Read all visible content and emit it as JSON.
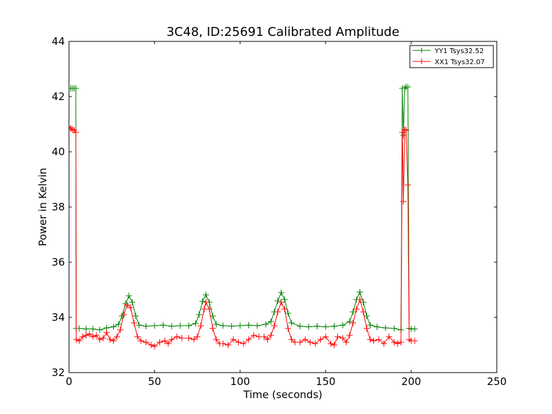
{
  "chart_data": {
    "type": "line",
    "title": "3C48, ID:25691 Calibrated Amplitude",
    "xlabel": "Time (seconds)",
    "ylabel": "Power in Kelvin",
    "xlim": [
      0,
      250
    ],
    "ylim": [
      32,
      44
    ],
    "xticks": [
      "0",
      "50",
      "100",
      "150",
      "200",
      "250"
    ],
    "yticks": [
      "32",
      "34",
      "36",
      "38",
      "40",
      "42",
      "44"
    ],
    "legend_position": "top-right",
    "grid": false,
    "marker": "+",
    "series": [
      {
        "name": "YY1 Tsys32.52",
        "color": "#008000",
        "points": [
          [
            0,
            42.3
          ],
          [
            1,
            42.3
          ],
          [
            2,
            42.3
          ],
          [
            3,
            42.3
          ],
          [
            4,
            42.3
          ],
          [
            4.2,
            33.6
          ],
          [
            6,
            33.6
          ],
          [
            10,
            33.58
          ],
          [
            14,
            33.58
          ],
          [
            18,
            33.55
          ],
          [
            22,
            33.62
          ],
          [
            26,
            33.66
          ],
          [
            29,
            33.75
          ],
          [
            31,
            34.05
          ],
          [
            33,
            34.5
          ],
          [
            35,
            34.78
          ],
          [
            37,
            34.55
          ],
          [
            39,
            34.05
          ],
          [
            41,
            33.72
          ],
          [
            45,
            33.68
          ],
          [
            50,
            33.7
          ],
          [
            55,
            33.72
          ],
          [
            60,
            33.68
          ],
          [
            65,
            33.7
          ],
          [
            70,
            33.7
          ],
          [
            74,
            33.78
          ],
          [
            76,
            34.1
          ],
          [
            78,
            34.58
          ],
          [
            80,
            34.82
          ],
          [
            82,
            34.55
          ],
          [
            84,
            34.05
          ],
          [
            86,
            33.75
          ],
          [
            90,
            33.7
          ],
          [
            95,
            33.68
          ],
          [
            100,
            33.7
          ],
          [
            105,
            33.72
          ],
          [
            110,
            33.7
          ],
          [
            115,
            33.75
          ],
          [
            118,
            33.85
          ],
          [
            120,
            34.2
          ],
          [
            122,
            34.6
          ],
          [
            124,
            34.9
          ],
          [
            126,
            34.65
          ],
          [
            128,
            34.15
          ],
          [
            130,
            33.8
          ],
          [
            135,
            33.68
          ],
          [
            140,
            33.66
          ],
          [
            145,
            33.68
          ],
          [
            150,
            33.66
          ],
          [
            155,
            33.68
          ],
          [
            160,
            33.72
          ],
          [
            164,
            33.85
          ],
          [
            166,
            34.2
          ],
          [
            168,
            34.65
          ],
          [
            170,
            34.92
          ],
          [
            172,
            34.55
          ],
          [
            174,
            34.05
          ],
          [
            176,
            33.72
          ],
          [
            180,
            33.66
          ],
          [
            185,
            33.62
          ],
          [
            190,
            33.6
          ],
          [
            194,
            33.55
          ],
          [
            194.8,
            42.3
          ],
          [
            195.4,
            40.6
          ],
          [
            196.2,
            42.3
          ],
          [
            197,
            42.35
          ],
          [
            198,
            42.35
          ],
          [
            198.8,
            33.6
          ],
          [
            200,
            33.58
          ],
          [
            202,
            33.58
          ]
        ]
      },
      {
        "name": "XX1 Tsys32.07",
        "color": "#ff0000",
        "points": [
          [
            0,
            40.9
          ],
          [
            1,
            40.85
          ],
          [
            2,
            40.8
          ],
          [
            3,
            40.78
          ],
          [
            4,
            40.7
          ],
          [
            4.2,
            33.2
          ],
          [
            6,
            33.15
          ],
          [
            8,
            33.3
          ],
          [
            10,
            33.35
          ],
          [
            12,
            33.4
          ],
          [
            14,
            33.3
          ],
          [
            16,
            33.35
          ],
          [
            18,
            33.2
          ],
          [
            20,
            33.25
          ],
          [
            22,
            33.45
          ],
          [
            24,
            33.2
          ],
          [
            26,
            33.15
          ],
          [
            28,
            33.3
          ],
          [
            30,
            33.55
          ],
          [
            32,
            34.1
          ],
          [
            34,
            34.45
          ],
          [
            36,
            34.35
          ],
          [
            38,
            33.8
          ],
          [
            40,
            33.3
          ],
          [
            42,
            33.15
          ],
          [
            45,
            33.1
          ],
          [
            48,
            33.0
          ],
          [
            50,
            32.95
          ],
          [
            53,
            33.1
          ],
          [
            56,
            33.15
          ],
          [
            58,
            33.05
          ],
          [
            60,
            33.2
          ],
          [
            63,
            33.3
          ],
          [
            66,
            33.25
          ],
          [
            70,
            33.25
          ],
          [
            73,
            33.2
          ],
          [
            75,
            33.3
          ],
          [
            77,
            33.7
          ],
          [
            79,
            34.3
          ],
          [
            80,
            34.55
          ],
          [
            82,
            34.3
          ],
          [
            84,
            33.6
          ],
          [
            86,
            33.2
          ],
          [
            88,
            33.05
          ],
          [
            90,
            33.05
          ],
          [
            93,
            33.0
          ],
          [
            96,
            33.2
          ],
          [
            99,
            33.1
          ],
          [
            102,
            33.05
          ],
          [
            105,
            33.2
          ],
          [
            108,
            33.35
          ],
          [
            111,
            33.3
          ],
          [
            114,
            33.3
          ],
          [
            116,
            33.2
          ],
          [
            118,
            33.35
          ],
          [
            120,
            33.7
          ],
          [
            122,
            34.2
          ],
          [
            124,
            34.55
          ],
          [
            126,
            34.3
          ],
          [
            128,
            33.6
          ],
          [
            130,
            33.2
          ],
          [
            132,
            33.1
          ],
          [
            135,
            33.1
          ],
          [
            138,
            33.2
          ],
          [
            141,
            33.1
          ],
          [
            144,
            33.05
          ],
          [
            147,
            33.2
          ],
          [
            150,
            33.3
          ],
          [
            153,
            33.05
          ],
          [
            155,
            33.0
          ],
          [
            157,
            33.3
          ],
          [
            160,
            33.25
          ],
          [
            162,
            33.1
          ],
          [
            164,
            33.35
          ],
          [
            166,
            33.8
          ],
          [
            168,
            34.3
          ],
          [
            170,
            34.65
          ],
          [
            172,
            34.2
          ],
          [
            174,
            33.6
          ],
          [
            176,
            33.2
          ],
          [
            178,
            33.15
          ],
          [
            181,
            33.2
          ],
          [
            184,
            33.05
          ],
          [
            187,
            33.3
          ],
          [
            190,
            33.1
          ],
          [
            192,
            33.05
          ],
          [
            194,
            33.1
          ],
          [
            194.8,
            40.7
          ],
          [
            195.4,
            38.2
          ],
          [
            196.2,
            40.8
          ],
          [
            197,
            40.78
          ],
          [
            198,
            38.8
          ],
          [
            198.8,
            33.2
          ],
          [
            200,
            33.15
          ],
          [
            202,
            33.15
          ]
        ]
      }
    ]
  }
}
